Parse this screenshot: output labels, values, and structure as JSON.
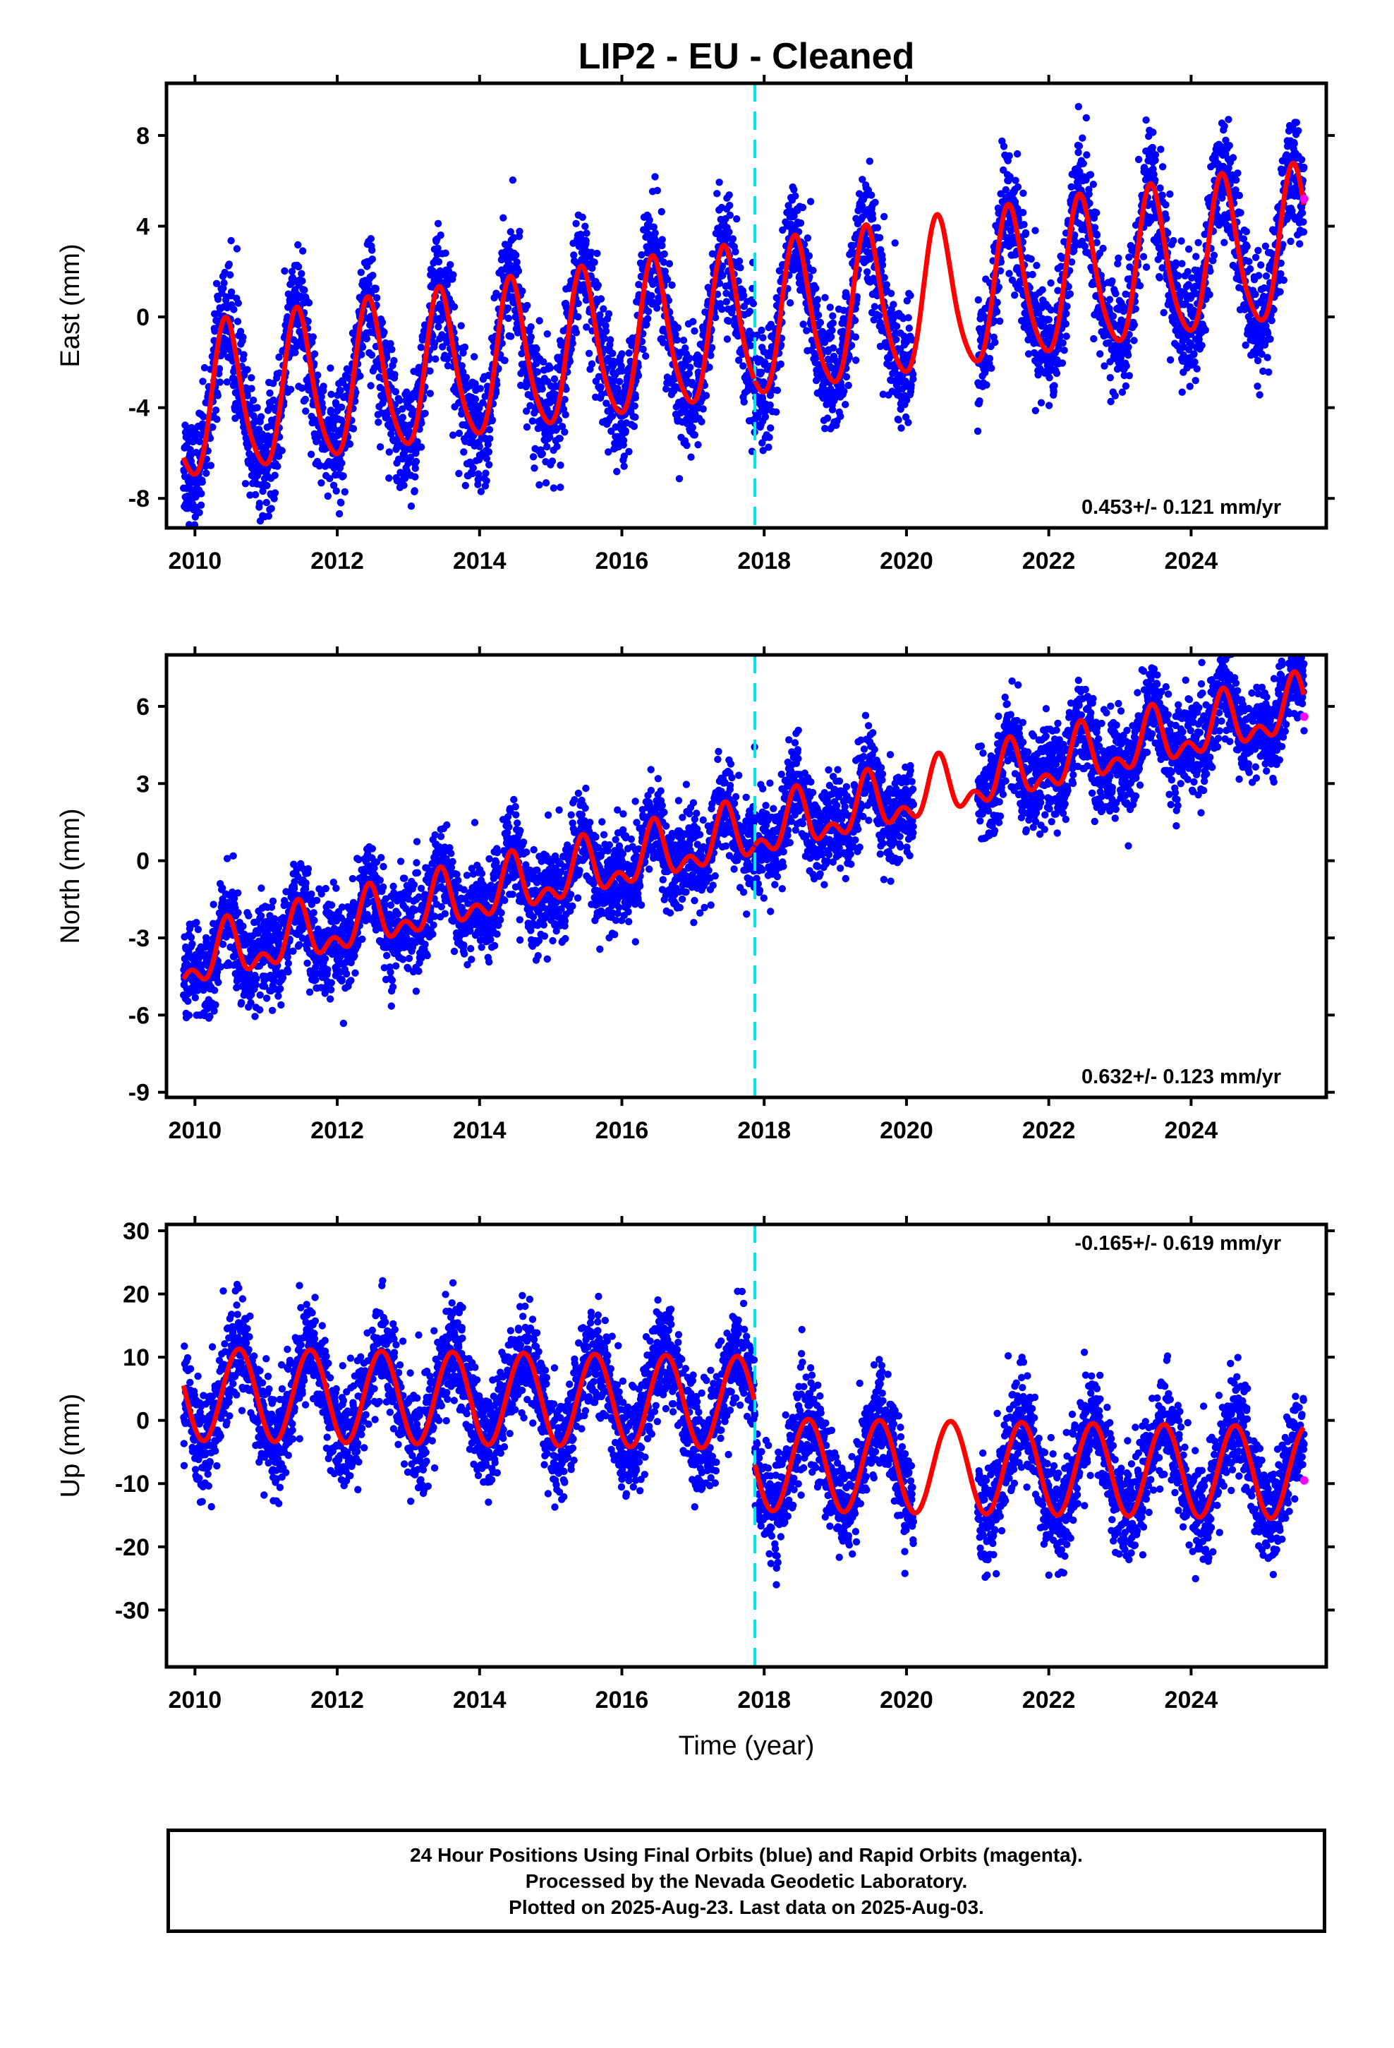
{
  "colors": {
    "final_orbit_points": "#0000ff",
    "rapid_orbit_points": "#ff00ff",
    "model_fit": "#ff0000",
    "equipment_change_line": "#00e5e5",
    "axes": "#000000"
  },
  "chart_data": {
    "type": "scatter",
    "title": "LIP2  - EU - Cleaned",
    "xlabel": "Time (year)",
    "x_ticks": [
      "2010",
      "2012",
      "2014",
      "2016",
      "2018",
      "2020",
      "2022",
      "2024"
    ],
    "xlim": [
      2009.6,
      2025.9
    ],
    "event_line_x": 2017.87,
    "data_gaps": [
      [
        2020.1,
        2021.0
      ]
    ],
    "last_data": 2025.59,
    "panels": [
      {
        "id": "east",
        "ylabel": "East (mm)",
        "ylim": [
          -9.3,
          10.3
        ],
        "y_ticks": [
          -8,
          -4,
          0,
          4,
          8
        ],
        "rate_label": "0.453+/- 0.121 mm/yr",
        "rate_position": "bottom-right",
        "model": {
          "offset_2017_87": 0.0,
          "trend": 0.453,
          "annual_amp": 3.3,
          "annual_peak": 0.45,
          "semiannual_amp": 0.5,
          "semiannual_peak": 0.4,
          "step": 0.0,
          "start_value": -6.2
        },
        "scatter_sd": 1.3,
        "rapid_points": [
          [
            2025.59,
            5.2
          ]
        ]
      },
      {
        "id": "north",
        "ylabel": "North (mm)",
        "ylim": [
          -9.2,
          8.0
        ],
        "y_ticks": [
          -9,
          -6,
          -3,
          0,
          3,
          6
        ],
        "rate_label": "0.632+/- 0.123 mm/yr",
        "rate_position": "bottom-right",
        "model": {
          "trend": 0.632,
          "annual_amp": 0.9,
          "annual_peak": 0.45,
          "semiannual_amp": 0.6,
          "semiannual_peak": 0.45,
          "step": 0.0,
          "start_value": -4.6
        },
        "scatter_sd": 0.9,
        "rapid_points": [
          [
            2025.59,
            5.6
          ]
        ]
      },
      {
        "id": "up",
        "ylabel": "Up (mm)",
        "ylim": [
          -39,
          31
        ],
        "y_ticks": [
          -30,
          -20,
          -10,
          0,
          10,
          20,
          30
        ],
        "rate_label": "-0.165+/- 0.619 mm/yr",
        "rate_position": "top-right",
        "model": {
          "trend": -0.165,
          "annual_amp": 7.3,
          "annual_peak": 0.62,
          "semiannual_amp": 0.0,
          "semiannual_peak": 0.0,
          "step": -9.8,
          "start_value": 5.5
        },
        "scatter_sd": 4.0,
        "rapid_points": [
          [
            2025.59,
            -9.5
          ]
        ]
      }
    ]
  },
  "caption": {
    "line1": "24 Hour Positions Using Final Orbits (blue) and Rapid Orbits (magenta).",
    "line2": "Processed by the Nevada Geodetic Laboratory.",
    "line3": "Plotted on 2025-Aug-23. Last data on 2025-Aug-03."
  }
}
